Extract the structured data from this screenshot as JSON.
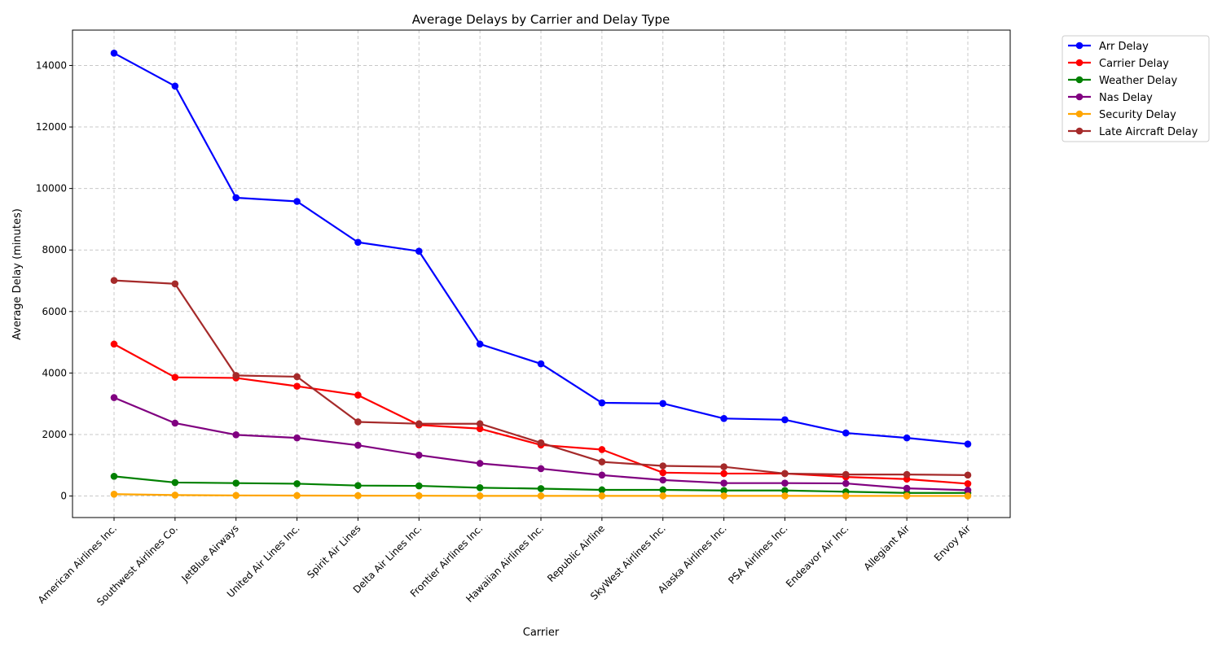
{
  "chart_data": {
    "type": "line",
    "title": "Average Delays by Carrier and Delay Type",
    "xlabel": "Carrier",
    "ylabel": "Average Delay (minutes)",
    "categories": [
      "American Airlines Inc.",
      "Southwest Airlines Co.",
      "JetBlue Airways",
      "United Air Lines Inc.",
      "Spirit Air Lines",
      "Delta Air Lines Inc.",
      "Frontier Airlines Inc.",
      "Hawaiian Airlines Inc.",
      "Republic Airline",
      "SkyWest Airlines Inc.",
      "Alaska Airlines Inc.",
      "PSA Airlines Inc.",
      "Endeavor Air Inc.",
      "Allegiant Air",
      "Envoy Air"
    ],
    "ylim": [
      -700,
      15150
    ],
    "yticks": [
      0,
      2000,
      4000,
      6000,
      8000,
      10000,
      12000,
      14000
    ],
    "grid": true,
    "legend_position": "outside top-right",
    "series": [
      {
        "name": "Arr Delay",
        "color": "#0000ff",
        "values": [
          14400,
          13330,
          9700,
          9580,
          8250,
          7960,
          4940,
          4300,
          3030,
          3010,
          2520,
          2480,
          2050,
          1890,
          1690
        ]
      },
      {
        "name": "Carrier Delay",
        "color": "#ff0000",
        "values": [
          4940,
          3860,
          3840,
          3570,
          3280,
          2310,
          2190,
          1660,
          1510,
          760,
          730,
          730,
          620,
          550,
          400
        ]
      },
      {
        "name": "Weather Delay",
        "color": "#008000",
        "values": [
          640,
          440,
          420,
          400,
          340,
          330,
          270,
          240,
          200,
          200,
          180,
          180,
          140,
          100,
          100
        ]
      },
      {
        "name": "Nas Delay",
        "color": "#800080",
        "values": [
          3200,
          2370,
          1990,
          1890,
          1650,
          1330,
          1060,
          890,
          680,
          520,
          420,
          420,
          410,
          250,
          190
        ]
      },
      {
        "name": "Security Delay",
        "color": "#ffa500",
        "values": [
          60,
          30,
          20,
          15,
          12,
          10,
          5,
          5,
          5,
          5,
          5,
          5,
          5,
          3,
          3
        ]
      },
      {
        "name": "Late Aircraft Delay",
        "color": "#a52a2a",
        "values": [
          7010,
          6900,
          3920,
          3880,
          2410,
          2350,
          2350,
          1730,
          1110,
          980,
          950,
          730,
          700,
          700,
          680
        ]
      }
    ]
  }
}
